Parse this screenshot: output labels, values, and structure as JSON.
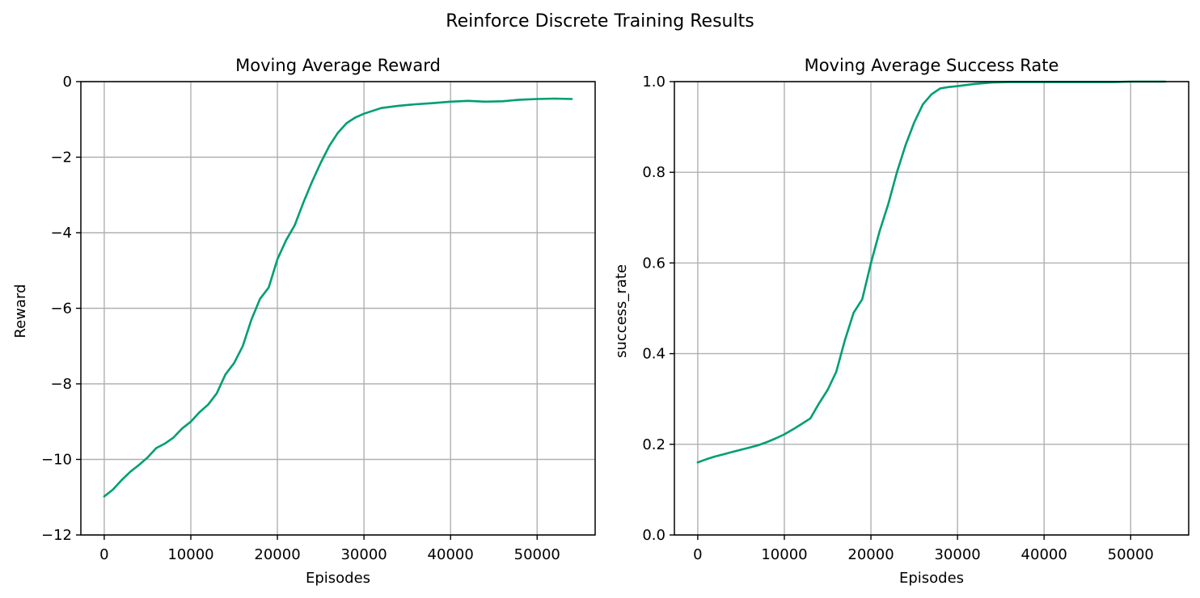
{
  "figure": {
    "suptitle": "Reinforce Discrete Training Results"
  },
  "chart_data": [
    {
      "type": "line",
      "title": "Moving Average Reward",
      "xlabel": "Episodes",
      "ylabel": "Reward",
      "xlim": [
        -2700,
        56700
      ],
      "ylim": [
        -12,
        0
      ],
      "xticks": [
        0,
        10000,
        20000,
        30000,
        40000,
        50000
      ],
      "yticks": [
        -12,
        -10,
        -8,
        -6,
        -4,
        -2,
        0
      ],
      "grid": true,
      "color": "#009e73",
      "series": [
        {
          "x": [
            0,
            1000,
            2000,
            3000,
            4000,
            5000,
            6000,
            7000,
            8000,
            9000,
            10000,
            11000,
            12000,
            13000,
            14000,
            15000,
            16000,
            17000,
            18000,
            19000,
            20000,
            21000,
            22000,
            23000,
            24000,
            25000,
            26000,
            27000,
            28000,
            29000,
            30000,
            32000,
            34000,
            36000,
            38000,
            40000,
            42000,
            44000,
            46000,
            48000,
            50000,
            52000,
            54000
          ],
          "y": [
            -10.98,
            -10.8,
            -10.55,
            -10.33,
            -10.15,
            -9.95,
            -9.7,
            -9.58,
            -9.42,
            -9.18,
            -9.0,
            -8.75,
            -8.55,
            -8.25,
            -7.75,
            -7.45,
            -7.0,
            -6.3,
            -5.75,
            -5.45,
            -4.7,
            -4.2,
            -3.8,
            -3.2,
            -2.65,
            -2.15,
            -1.7,
            -1.35,
            -1.1,
            -0.95,
            -0.85,
            -0.7,
            -0.64,
            -0.6,
            -0.57,
            -0.53,
            -0.51,
            -0.53,
            -0.52,
            -0.48,
            -0.46,
            -0.45,
            -0.46
          ]
        }
      ]
    },
    {
      "type": "line",
      "title": "Moving Average Success Rate",
      "xlabel": "Episodes",
      "ylabel": "success_rate",
      "xlim": [
        -2700,
        56700
      ],
      "ylim": [
        0,
        1
      ],
      "xticks": [
        0,
        10000,
        20000,
        30000,
        40000,
        50000
      ],
      "yticks": [
        0.0,
        0.2,
        0.4,
        0.6,
        0.8,
        1.0
      ],
      "ytick_labels": [
        "0.0",
        "0.2",
        "0.4",
        "0.6",
        "0.8",
        "1.0"
      ],
      "grid": true,
      "color": "#009e73",
      "series": [
        {
          "x": [
            0,
            1000,
            2000,
            3000,
            4000,
            5000,
            6000,
            7000,
            8000,
            9000,
            10000,
            11000,
            12000,
            13000,
            14000,
            15000,
            16000,
            17000,
            18000,
            19000,
            20000,
            21000,
            22000,
            23000,
            24000,
            25000,
            26000,
            27000,
            28000,
            29000,
            30000,
            32000,
            34000,
            36000,
            38000,
            40000,
            42000,
            44000,
            46000,
            48000,
            50000,
            52000,
            54000
          ],
          "y": [
            0.16,
            0.167,
            0.173,
            0.178,
            0.183,
            0.188,
            0.193,
            0.198,
            0.205,
            0.213,
            0.222,
            0.233,
            0.245,
            0.257,
            0.29,
            0.32,
            0.36,
            0.43,
            0.49,
            0.52,
            0.6,
            0.67,
            0.73,
            0.8,
            0.86,
            0.91,
            0.95,
            0.972,
            0.985,
            0.988,
            0.99,
            0.995,
            0.998,
            0.999,
            0.999,
            0.999,
            0.999,
            0.999,
            0.999,
            0.999,
            1.0,
            1.0,
            1.0
          ]
        }
      ]
    }
  ]
}
